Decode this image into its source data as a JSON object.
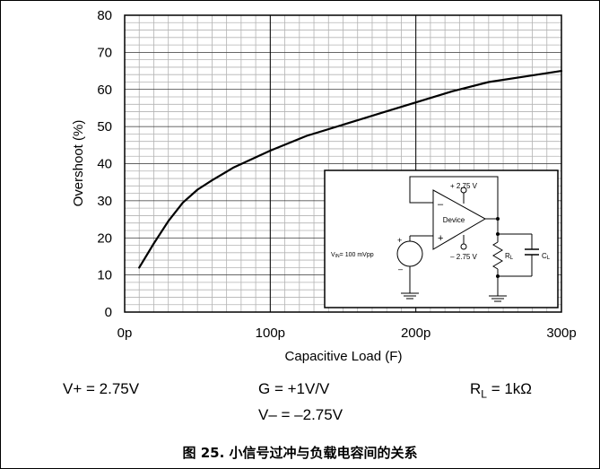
{
  "chart_data": {
    "type": "line",
    "xlabel": "Capacitive Load (F)",
    "ylabel": "Overshoot (%)",
    "xlim": [
      0,
      300
    ],
    "ylim": [
      0,
      80
    ],
    "x_ticks": [
      0,
      100,
      200,
      300
    ],
    "x_tick_labels": [
      "0p",
      "100p",
      "200p",
      "300p"
    ],
    "y_ticks": [
      0,
      10,
      20,
      30,
      40,
      50,
      60,
      70,
      80
    ],
    "y_tick_labels": [
      "0",
      "10",
      "20",
      "30",
      "40",
      "50",
      "60",
      "70",
      "80"
    ],
    "grid": true,
    "series": [
      {
        "x": [
          10,
          20,
          30,
          40,
          50,
          60,
          75,
          100,
          125,
          150,
          175,
          200,
          225,
          250,
          275,
          300
        ],
        "y": [
          12,
          18.5,
          24.5,
          29.5,
          33,
          35.5,
          39,
          43.5,
          47.5,
          50.5,
          53.5,
          56.5,
          59.5,
          62,
          63.5,
          65
        ]
      }
    ]
  },
  "circuit": {
    "vplus": "+ 2.75 V",
    "vminus": "– 2.75 V",
    "device": "Device",
    "minus_sign": "–",
    "plus_sign": "+",
    "src_plus": "+",
    "src_minus": "–",
    "vin_label": "V",
    "vin_sub": "IN",
    "vin_value": "= 100 mVpp",
    "rl": "R",
    "rl_sub": "L",
    "cl": "C",
    "cl_sub": "L"
  },
  "conditions": {
    "vplus": "V+ = 2.75V",
    "gain": "G = +1V/V",
    "rl_prefix": "R",
    "rl_sub": "L",
    "rl_suffix": " = 1kΩ",
    "vminus": "V– = –2.75V"
  },
  "caption": "图 25. 小信号过冲与负载电容间的关系"
}
